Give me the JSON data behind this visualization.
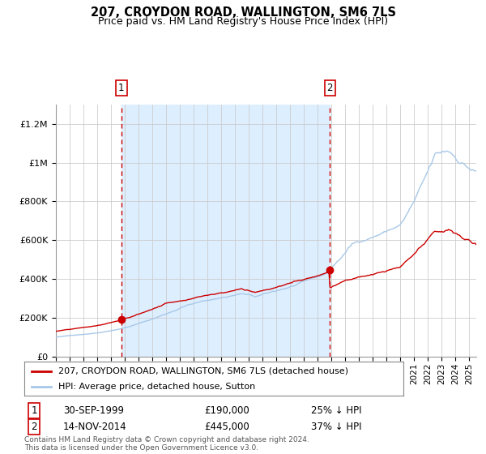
{
  "title": "207, CROYDON ROAD, WALLINGTON, SM6 7LS",
  "subtitle": "Price paid vs. HM Land Registry's House Price Index (HPI)",
  "footnote": "Contains HM Land Registry data © Crown copyright and database right 2024.\nThis data is licensed under the Open Government Licence v3.0.",
  "legend_line1": "207, CROYDON ROAD, WALLINGTON, SM6 7LS (detached house)",
  "legend_line2": "HPI: Average price, detached house, Sutton",
  "annotation1": {
    "label": "1",
    "date": "30-SEP-1999",
    "price": "£190,000",
    "pct": "25% ↓ HPI"
  },
  "annotation2": {
    "label": "2",
    "date": "14-NOV-2014",
    "price": "£445,000",
    "pct": "37% ↓ HPI"
  },
  "hpi_color": "#a8c8e8",
  "price_color": "#cc0000",
  "bg_color_between": "#ddeeff",
  "vline_color": "#cc0000",
  "grid_color": "#cccccc",
  "ylim": [
    0,
    1300000
  ],
  "xlim_start": 1995.0,
  "xlim_end": 2025.5,
  "sale1_x": 1999.75,
  "sale1_y": 190000,
  "sale2_x": 2014.88,
  "sale2_y": 445000,
  "vline1_x": 1999.75,
  "vline2_x": 2014.88,
  "yticks": [
    0,
    200000,
    400000,
    600000,
    800000,
    1000000,
    1200000
  ],
  "ylabels": [
    "£0",
    "£200K",
    "£400K",
    "£600K",
    "£800K",
    "£1M",
    "£1.2M"
  ]
}
